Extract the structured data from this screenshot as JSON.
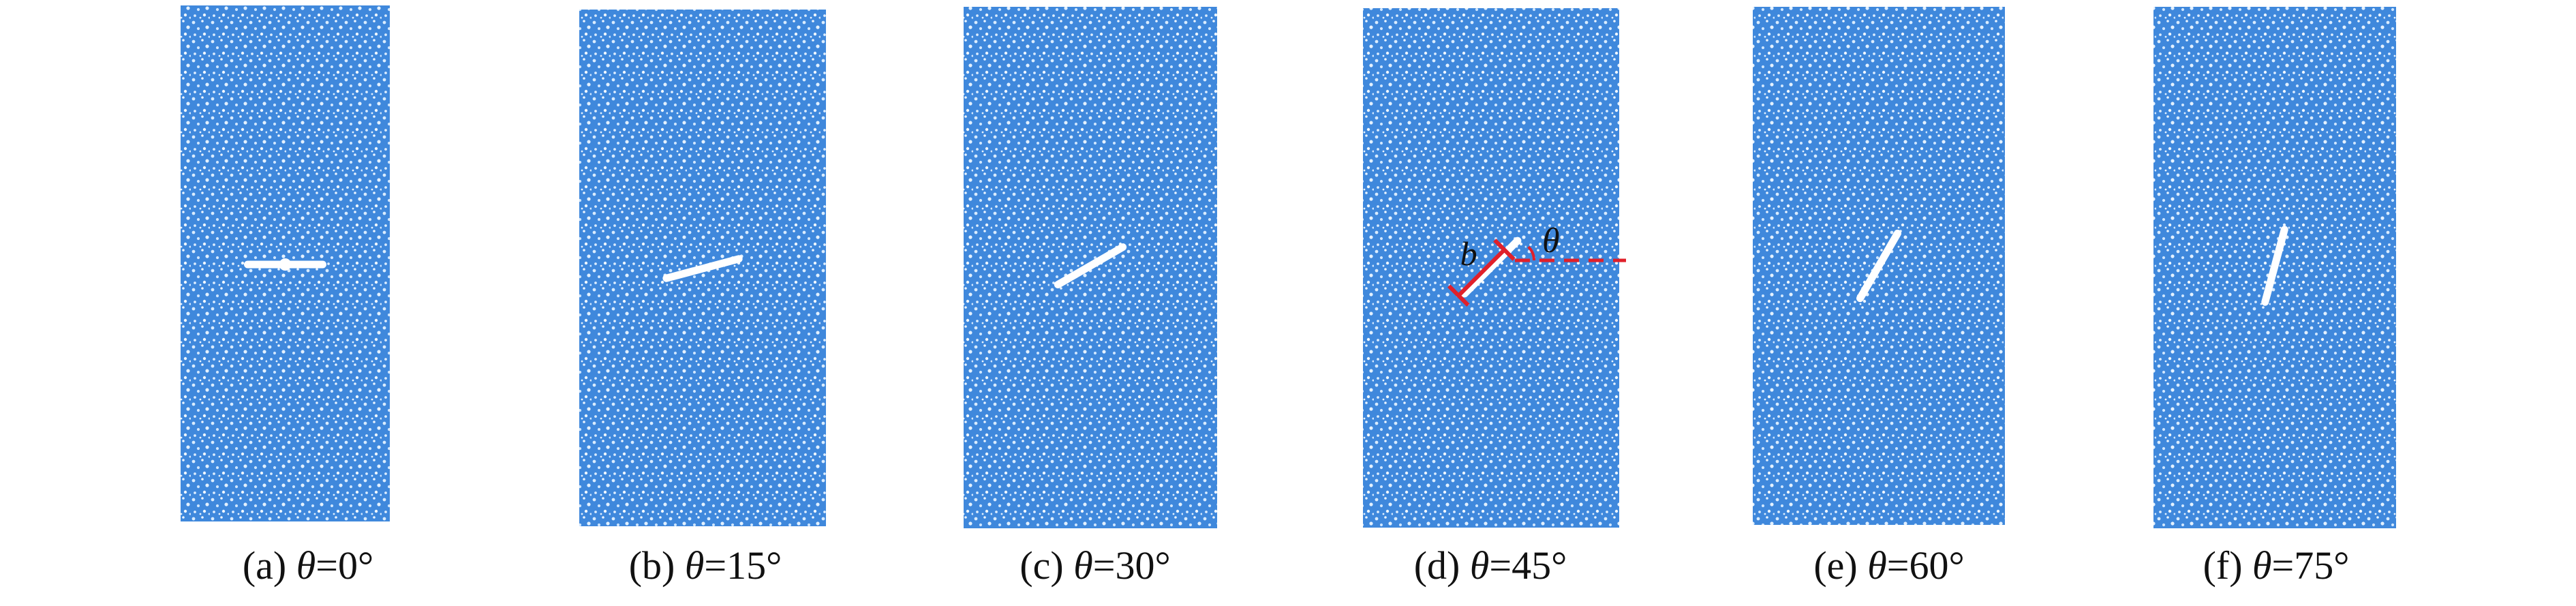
{
  "figure": {
    "specimen_color": "#3f88dc",
    "fracture_color": "#ffffff",
    "annotation_color": "#e0202a",
    "panels": [
      {
        "label_prefix": "(a) ",
        "symbol": "θ",
        "label_suffix": "=0°",
        "angle_deg": 0
      },
      {
        "label_prefix": "(b) ",
        "symbol": "θ",
        "label_suffix": "=15°",
        "angle_deg": 15
      },
      {
        "label_prefix": "(c) ",
        "symbol": "θ",
        "label_suffix": "=30°",
        "angle_deg": 30
      },
      {
        "label_prefix": "(d) ",
        "symbol": "θ",
        "label_suffix": "=45°",
        "angle_deg": 45,
        "annotation": {
          "length_symbol": "b",
          "angle_symbol": "θ"
        }
      },
      {
        "label_prefix": "(e) ",
        "symbol": "θ",
        "label_suffix": "=60°",
        "angle_deg": 60
      },
      {
        "label_prefix": "(f) ",
        "symbol": "θ",
        "label_suffix": "=75°",
        "angle_deg": 75
      }
    ]
  }
}
